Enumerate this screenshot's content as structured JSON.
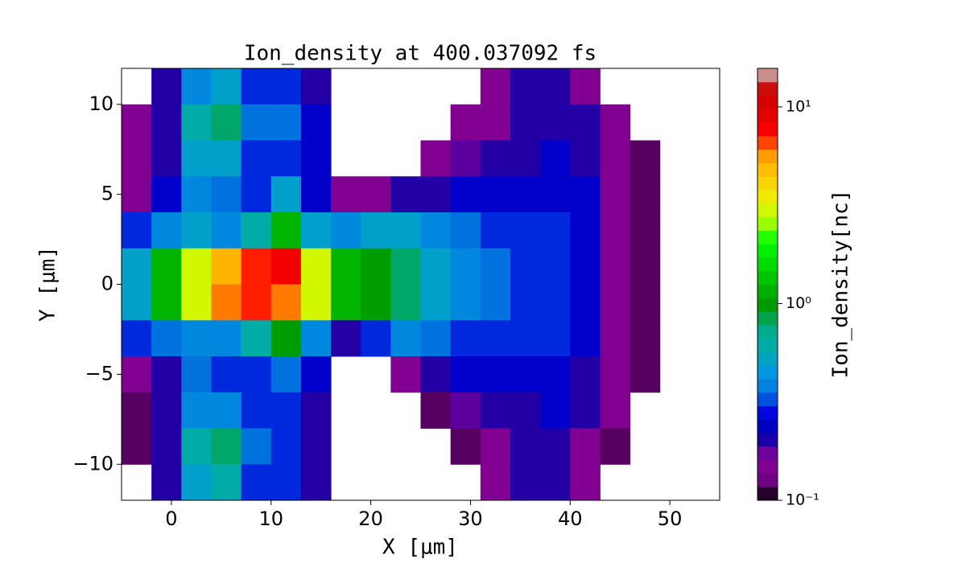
{
  "chart_data": {
    "type": "heatmap",
    "title": "Ion_density at 400.037092 fs",
    "x_label": "X [μm]",
    "y_label": "Y [μm]",
    "colorbar_label": "Ion_density[nc]",
    "colormap": "nipy_spectral",
    "log_color_scale": true,
    "xlim": [
      -5,
      55
    ],
    "ylim": [
      -12,
      12
    ],
    "xticks": [
      0,
      10,
      20,
      30,
      40,
      50
    ],
    "yticks": [
      {
        "value": -10,
        "label": "−10"
      },
      {
        "value": -5,
        "label": "−5"
      },
      0,
      5,
      10
    ],
    "clim": [
      0.1,
      15.7
    ],
    "cticks": [
      {
        "value": 0.1,
        "label": "10⁻¹"
      },
      {
        "value": 1,
        "label": "10⁰"
      },
      {
        "value": 10,
        "label": "10¹"
      }
    ],
    "xbins": [
      -5,
      -2,
      1,
      4,
      7,
      10,
      13,
      16,
      19,
      22,
      25,
      28,
      31,
      34,
      37,
      40,
      43,
      46,
      49,
      52,
      55
    ],
    "ybins": [
      12,
      10,
      8,
      6,
      4,
      2,
      0,
      -2,
      -4,
      -6,
      -8,
      -10,
      -12
    ],
    "z": [
      [
        null,
        0.2,
        0.4,
        0.5,
        0.3,
        0.3,
        0.2,
        null,
        null,
        null,
        null,
        null,
        0.15,
        0.2,
        0.2,
        0.15,
        null,
        null,
        null,
        null
      ],
      [
        0.15,
        0.2,
        0.6,
        0.8,
        0.35,
        0.35,
        0.25,
        null,
        null,
        null,
        null,
        0.15,
        0.15,
        0.2,
        0.2,
        0.2,
        0.15,
        null,
        null,
        null
      ],
      [
        0.15,
        0.2,
        0.5,
        0.5,
        0.3,
        0.3,
        0.25,
        null,
        null,
        null,
        0.15,
        0.18,
        0.2,
        0.2,
        0.25,
        0.2,
        0.15,
        0.12,
        null,
        null
      ],
      [
        0.15,
        0.25,
        0.4,
        0.35,
        0.3,
        0.5,
        0.25,
        0.15,
        0.15,
        0.2,
        0.2,
        0.25,
        0.25,
        0.25,
        0.25,
        0.25,
        0.15,
        0.12,
        null,
        null
      ],
      [
        0.3,
        0.4,
        0.5,
        0.4,
        0.6,
        1.2,
        0.5,
        0.4,
        0.5,
        0.5,
        0.4,
        0.35,
        0.3,
        0.3,
        0.3,
        0.25,
        0.15,
        0.12,
        null,
        null
      ],
      [
        0.5,
        1.2,
        3,
        5,
        7,
        8,
        3,
        1.2,
        1.0,
        0.8,
        0.5,
        0.4,
        0.35,
        0.3,
        0.3,
        0.25,
        0.15,
        0.12,
        null,
        null
      ],
      [
        0.5,
        1.2,
        3,
        6,
        7,
        6,
        3,
        1.2,
        1.0,
        0.8,
        0.5,
        0.4,
        0.35,
        0.3,
        0.3,
        0.25,
        0.15,
        0.12,
        null,
        null
      ],
      [
        0.3,
        0.35,
        0.4,
        0.4,
        0.6,
        1.0,
        0.4,
        0.2,
        0.3,
        0.4,
        0.35,
        0.3,
        0.3,
        0.3,
        0.3,
        0.25,
        0.15,
        0.12,
        null,
        null
      ],
      [
        0.15,
        0.2,
        0.35,
        0.3,
        0.3,
        0.35,
        0.25,
        null,
        null,
        0.15,
        0.2,
        0.25,
        0.25,
        0.25,
        0.25,
        0.2,
        0.15,
        0.12,
        null,
        null
      ],
      [
        0.12,
        0.2,
        0.4,
        0.4,
        0.3,
        0.3,
        0.2,
        null,
        null,
        null,
        0.12,
        0.18,
        0.2,
        0.2,
        0.25,
        0.2,
        0.15,
        null,
        null,
        null
      ],
      [
        0.12,
        0.2,
        0.6,
        0.8,
        0.35,
        0.3,
        0.2,
        null,
        null,
        null,
        null,
        0.12,
        0.15,
        0.2,
        0.2,
        0.15,
        0.12,
        null,
        null,
        null
      ],
      [
        null,
        0.2,
        0.5,
        0.6,
        0.3,
        0.3,
        0.2,
        null,
        null,
        null,
        null,
        null,
        0.15,
        0.2,
        0.2,
        0.15,
        null,
        null,
        null,
        null
      ]
    ]
  }
}
